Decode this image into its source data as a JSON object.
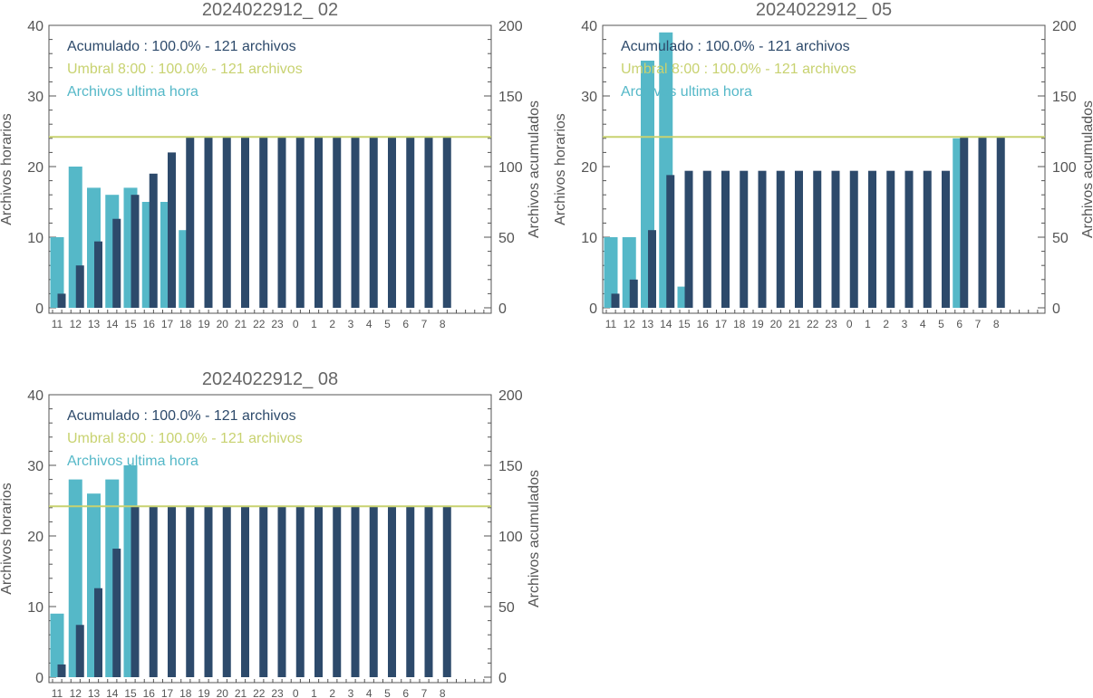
{
  "colors": {
    "hourly": "#55b8c8",
    "cumulative": "#2d4a6b",
    "threshold": "#c8d270",
    "axis": "#555555",
    "title": "#666666"
  },
  "chart_data": [
    {
      "type": "bar",
      "title": "2024022912_ 02",
      "ylabel": "Archivos horarios",
      "y2label": "Archivos acumulados",
      "ylim": [
        0,
        40
      ],
      "y2lim": [
        0,
        200
      ],
      "categories": [
        "11",
        "12",
        "13",
        "14",
        "15",
        "16",
        "17",
        "18",
        "19",
        "20",
        "21",
        "22",
        "23",
        "0",
        "1",
        "2",
        "3",
        "4",
        "5",
        "6",
        "7",
        "8"
      ],
      "legend": [
        {
          "text": "Acumulado : 100.0% - 121 archivos",
          "color": "#2d4a6b"
        },
        {
          "text": "Umbral 8:00 : 100.0% - 121 archivos",
          "color": "#c8d270"
        },
        {
          "text": "Archivos ultima hora",
          "color": "#55b8c8"
        }
      ],
      "threshold": 121,
      "series": [
        {
          "name": "Archivos ultima hora",
          "axis": "left",
          "values": [
            10,
            20,
            17,
            16,
            17,
            15,
            15,
            11,
            null,
            null,
            null,
            null,
            null,
            null,
            null,
            null,
            null,
            null,
            null,
            null,
            null,
            null
          ]
        },
        {
          "name": "Acumulado",
          "axis": "right",
          "values": [
            10,
            30,
            47,
            63,
            80,
            95,
            110,
            121,
            121,
            121,
            121,
            121,
            121,
            121,
            121,
            121,
            121,
            121,
            121,
            121,
            121,
            121
          ]
        }
      ]
    },
    {
      "type": "bar",
      "title": "2024022912_ 05",
      "ylabel": "Archivos horarios",
      "y2label": "Archivos acumulados",
      "ylim": [
        0,
        40
      ],
      "y2lim": [
        0,
        200
      ],
      "categories": [
        "11",
        "12",
        "13",
        "14",
        "15",
        "16",
        "17",
        "18",
        "19",
        "20",
        "21",
        "22",
        "23",
        "0",
        "1",
        "2",
        "3",
        "4",
        "5",
        "6",
        "7",
        "8"
      ],
      "legend": [
        {
          "text": "Acumulado : 100.0% - 121 archivos",
          "color": "#2d4a6b"
        },
        {
          "text": "Umbral 8:00 : 100.0% - 121 archivos",
          "color": "#c8d270"
        },
        {
          "text": "Archivos ultima hora",
          "color": "#55b8c8"
        }
      ],
      "threshold": 121,
      "series": [
        {
          "name": "Archivos ultima hora",
          "axis": "left",
          "values": [
            10,
            10,
            35,
            39,
            3,
            null,
            null,
            null,
            null,
            null,
            null,
            null,
            null,
            null,
            null,
            null,
            null,
            null,
            null,
            24,
            null,
            null
          ]
        },
        {
          "name": "Acumulado",
          "axis": "right",
          "values": [
            10,
            20,
            55,
            94,
            97,
            97,
            97,
            97,
            97,
            97,
            97,
            97,
            97,
            97,
            97,
            97,
            97,
            97,
            97,
            121,
            121,
            121
          ]
        }
      ]
    },
    {
      "type": "bar",
      "title": "2024022912_ 08",
      "ylabel": "Archivos horarios",
      "y2label": "Archivos acumulados",
      "ylim": [
        0,
        40
      ],
      "y2lim": [
        0,
        200
      ],
      "categories": [
        "11",
        "12",
        "13",
        "14",
        "15",
        "16",
        "17",
        "18",
        "19",
        "20",
        "21",
        "22",
        "23",
        "0",
        "1",
        "2",
        "3",
        "4",
        "5",
        "6",
        "7",
        "8"
      ],
      "legend": [
        {
          "text": "Acumulado : 100.0% - 121 archivos",
          "color": "#2d4a6b"
        },
        {
          "text": "Umbral 8:00 : 100.0% - 121 archivos",
          "color": "#c8d270"
        },
        {
          "text": "Archivos ultima hora",
          "color": "#55b8c8"
        }
      ],
      "threshold": 121,
      "series": [
        {
          "name": "Archivos ultima hora",
          "axis": "left",
          "values": [
            9,
            28,
            26,
            28,
            30,
            null,
            null,
            null,
            null,
            null,
            null,
            null,
            null,
            null,
            null,
            null,
            null,
            null,
            null,
            null,
            null,
            null
          ]
        },
        {
          "name": "Acumulado",
          "axis": "right",
          "values": [
            9,
            37,
            63,
            91,
            121,
            121,
            121,
            121,
            121,
            121,
            121,
            121,
            121,
            121,
            121,
            121,
            121,
            121,
            121,
            121,
            121,
            121
          ]
        }
      ]
    }
  ]
}
